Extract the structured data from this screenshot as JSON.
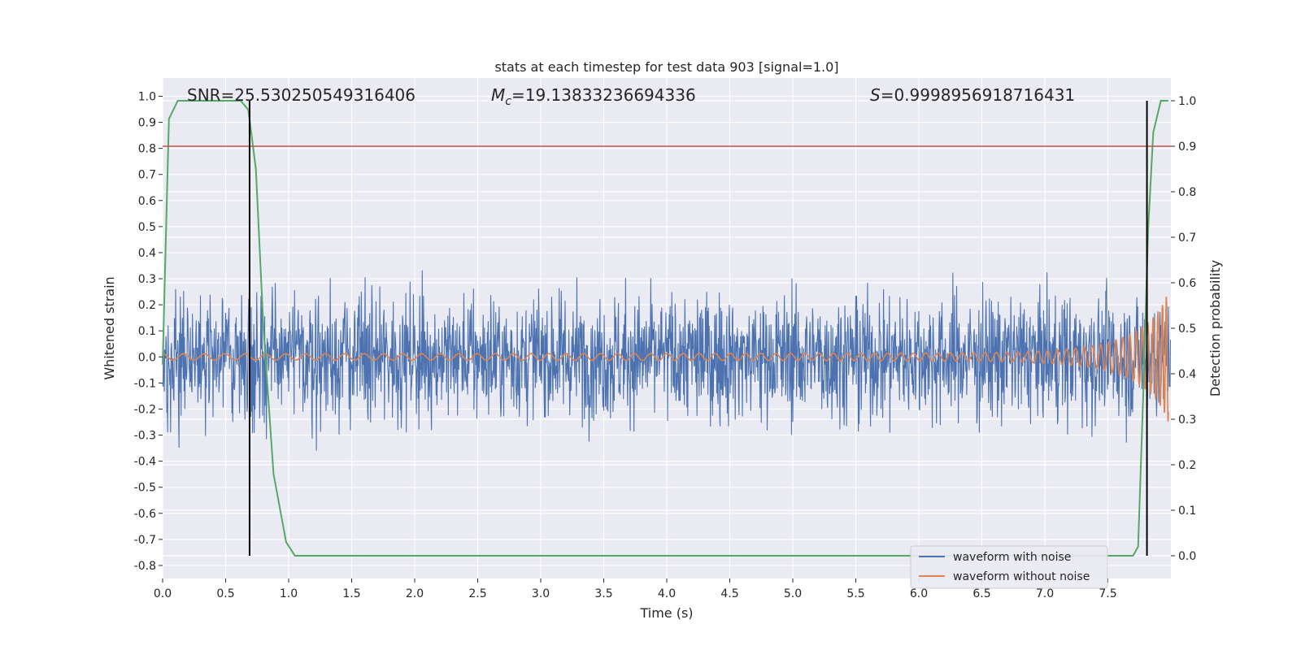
{
  "chart_data": {
    "type": "line",
    "title": "stats at each timestep for test data 903 [signal=1.0]",
    "xlabel": "Time (s)",
    "ylabel": "Whitened strain",
    "y2label": "Detection probability",
    "xlim": [
      0.0,
      8.0
    ],
    "ylim": [
      -0.85,
      1.07
    ],
    "y2lim": [
      -0.05,
      1.05
    ],
    "xticks": [
      "0.0",
      "0.5",
      "1.0",
      "1.5",
      "2.0",
      "2.5",
      "3.0",
      "3.5",
      "4.0",
      "4.5",
      "5.0",
      "5.5",
      "6.0",
      "6.5",
      "7.0",
      "7.5"
    ],
    "yticks": [
      "-0.8",
      "-0.7",
      "-0.6",
      "-0.5",
      "-0.4",
      "-0.3",
      "-0.2",
      "-0.1",
      "0.0",
      "0.1",
      "0.2",
      "0.3",
      "0.4",
      "0.5",
      "0.6",
      "0.7",
      "0.8",
      "0.9",
      "1.0"
    ],
    "y2ticks": [
      "0.0",
      "0.1",
      "0.2",
      "0.3",
      "0.4",
      "0.5",
      "0.6",
      "0.7",
      "0.8",
      "0.9",
      "1.0"
    ],
    "grid": true,
    "legend_location": "lower-right",
    "annotations": {
      "snr": "SNR=25.530250549316406",
      "mc_symbol": "M",
      "mc_sub": "c",
      "mc_value": "=19.13833236694336",
      "s_symbol": "S",
      "s_value": "=0.9998956918716431"
    },
    "series": [
      {
        "name": "waveform with noise",
        "color": "#4c72b0",
        "axis": "left",
        "style": "noise",
        "noise_amplitude": 0.24,
        "peak_max": 0.69,
        "peak_min": -0.77
      },
      {
        "name": "waveform without noise",
        "color": "#dd8452",
        "axis": "left",
        "style": "chirp",
        "amplitude_start": 0.012,
        "amplitude_end": 0.57,
        "t_end": 7.98
      },
      {
        "name": "detection probability",
        "color": "#55a868",
        "axis": "right",
        "t": [
          0.0,
          0.05,
          0.12,
          0.25,
          0.5,
          0.62,
          0.68,
          0.74,
          0.8,
          0.88,
          0.98,
          1.05,
          1.2,
          7.5,
          7.7,
          7.74,
          7.78,
          7.82,
          7.86,
          7.92,
          7.98
        ],
        "p": [
          0.42,
          0.96,
          1.0,
          1.0,
          1.0,
          1.0,
          0.98,
          0.85,
          0.5,
          0.18,
          0.03,
          0.0,
          0.0,
          0.0,
          0.0,
          0.02,
          0.35,
          0.72,
          0.93,
          1.0,
          1.0
        ]
      }
    ],
    "threshold": {
      "value": 0.9,
      "axis": "right",
      "color": "#c44e52"
    },
    "vlines": [
      0.69,
      7.81
    ]
  }
}
